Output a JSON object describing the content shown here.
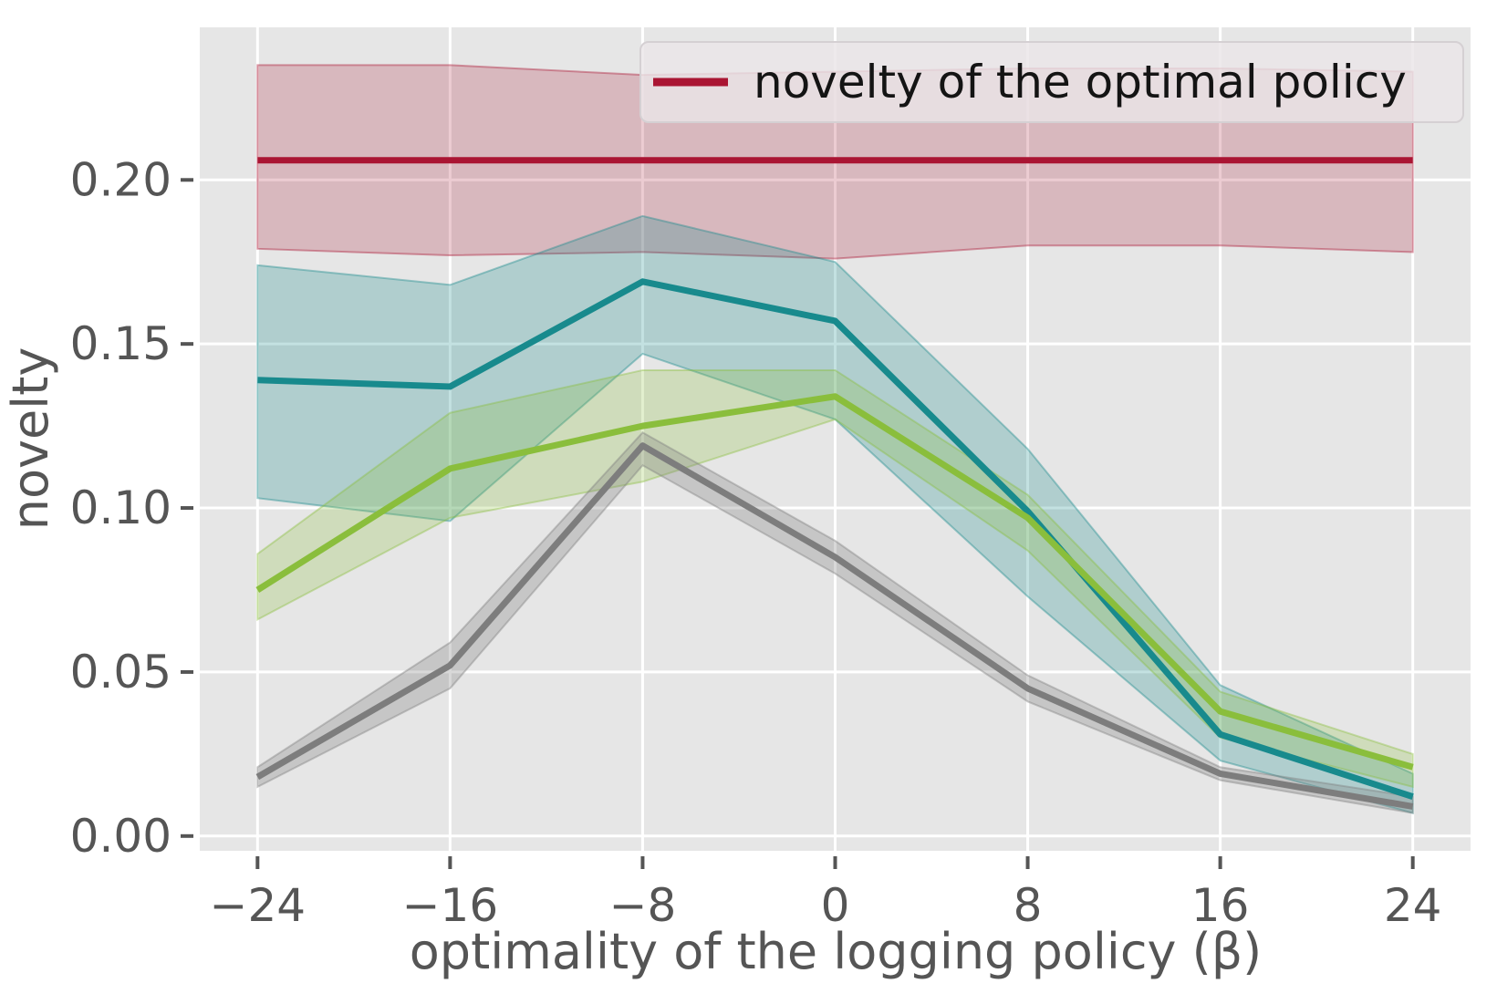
{
  "figure": {
    "background": "#ffffff",
    "axes_background": "#e6e6e6",
    "grid_color": "#ffffff",
    "tick_color": "#555555",
    "label_color": "#555555"
  },
  "chart_data": {
    "type": "line",
    "x": [
      -24,
      -16,
      -8,
      0,
      8,
      16,
      24
    ],
    "xlabel": "optimality of the logging policy (β)",
    "ylabel": "novelty",
    "xlim": [
      -26.4,
      26.4
    ],
    "ylim": [
      -0.0045,
      0.2465
    ],
    "xticks": [
      -24,
      -16,
      -8,
      0,
      8,
      16,
      24
    ],
    "xtick_labels": [
      "−24",
      "−16",
      "−8",
      "0",
      "8",
      "16",
      "24"
    ],
    "yticks": [
      0,
      0.05,
      0.1,
      0.15,
      0.2
    ],
    "ytick_labels": [
      "0.00",
      "0.05",
      "0.10",
      "0.15",
      "0.20"
    ],
    "grid": true,
    "background": "#e6e6e6",
    "grid_color": "#ffffff",
    "legend": {
      "position": "upper right",
      "entries": [
        {
          "label": "novelty of the optimal policy",
          "color": "#aa1533"
        }
      ]
    },
    "series": [
      {
        "name": "novelty of the optimal policy",
        "color": "#aa1533",
        "band_alpha": 0.22,
        "values": [
          0.206,
          0.206,
          0.206,
          0.206,
          0.206,
          0.206,
          0.206
        ],
        "band_low": [
          0.179,
          0.177,
          0.178,
          0.176,
          0.18,
          0.18,
          0.178
        ],
        "band_high": [
          0.235,
          0.235,
          0.232,
          0.233,
          0.234,
          0.234,
          0.233
        ]
      },
      {
        "name": "teal",
        "color": "#188a8d",
        "band_alpha": 0.26,
        "values": [
          0.139,
          0.137,
          0.169,
          0.157,
          0.099,
          0.031,
          0.012
        ],
        "band_low": [
          0.103,
          0.096,
          0.147,
          0.127,
          0.073,
          0.023,
          0.007
        ],
        "band_high": [
          0.174,
          0.168,
          0.189,
          0.175,
          0.118,
          0.046,
          0.019
        ]
      },
      {
        "name": "green",
        "color": "#8abe3c",
        "band_alpha": 0.25,
        "values": [
          0.075,
          0.112,
          0.125,
          0.134,
          0.097,
          0.038,
          0.021
        ],
        "band_low": [
          0.066,
          0.097,
          0.108,
          0.127,
          0.087,
          0.03,
          0.015
        ],
        "band_high": [
          0.086,
          0.129,
          0.142,
          0.142,
          0.104,
          0.044,
          0.025
        ]
      },
      {
        "name": "gray",
        "color": "#7d7d7d",
        "band_alpha": 0.3,
        "values": [
          0.018,
          0.052,
          0.119,
          0.085,
          0.045,
          0.019,
          0.009
        ],
        "band_low": [
          0.015,
          0.045,
          0.113,
          0.08,
          0.041,
          0.017,
          0.007
        ],
        "band_high": [
          0.021,
          0.059,
          0.123,
          0.09,
          0.049,
          0.021,
          0.012
        ]
      }
    ]
  }
}
